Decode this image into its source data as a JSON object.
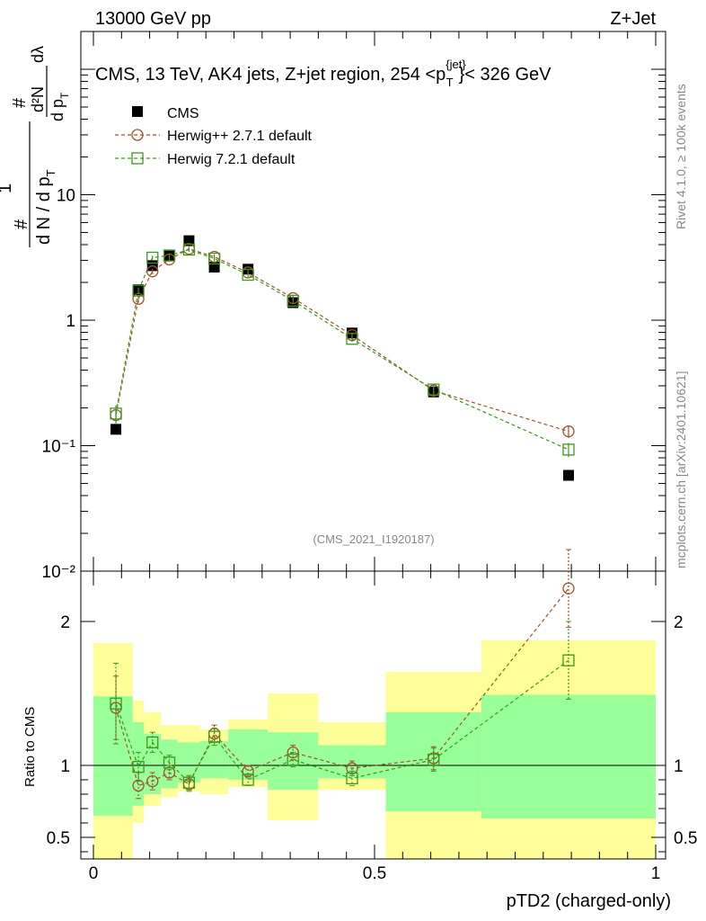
{
  "header": {
    "left": "13000 GeV pp",
    "right": "Z+Jet"
  },
  "side_labels": {
    "rivet": "Rivet 4.1.0, ≥ 100k events",
    "mcplots": "mcplots.cern.ch [arXiv:2401.10621]"
  },
  "watermark": "(CMS_2021_I1920187)",
  "ylabel_main": {
    "num": "1",
    "den": "d N / d p",
    "den_sub": "T",
    "hash_top": "#",
    "hash_bottom": "#",
    "frac2_num": "d²N",
    "frac2_den": "d p",
    "frac2_den_sub": "T",
    "dlambda": "dλ"
  },
  "chart_data": [
    {
      "type": "scatter",
      "panel": "main",
      "title": "CMS, 13 TeV, AK4 jets, Z+jet region, 254 <p",
      "title_sup": "{jet}",
      "title_sub": "T",
      "title_tail": "}< 326 GeV",
      "xlabel": "pTD2 (charged-only)",
      "yscale": "log",
      "xlim": [
        0,
        1
      ],
      "ylim": [
        0.01,
        200
      ],
      "yticks": [
        {
          "value": 0.01,
          "label": "10⁻²"
        },
        {
          "value": 0.1,
          "label": "10⁻¹"
        },
        {
          "value": 1,
          "label": "1"
        },
        {
          "value": 10,
          "label": "10"
        }
      ],
      "x": [
        0.04,
        0.08,
        0.105,
        0.135,
        0.17,
        0.215,
        0.275,
        0.355,
        0.46,
        0.605,
        0.845
      ],
      "series": [
        {
          "name": "CMS",
          "marker": "filled-square",
          "color": "#000000",
          "values": [
            0.135,
            1.75,
            2.72,
            3.25,
            4.3,
            2.65,
            2.55,
            1.38,
            0.79,
            0.268,
            0.058
          ]
        },
        {
          "name": "Herwig++ 2.7.1 default",
          "marker": "open-circle",
          "color": "#a0522d",
          "values": [
            0.175,
            1.48,
            2.45,
            3.05,
            3.7,
            3.2,
            2.4,
            1.5,
            0.76,
            0.275,
            0.13
          ],
          "errors": [
            0.018,
            0.1,
            0.12,
            0.12,
            0.15,
            0.15,
            0.1,
            0.07,
            0.04,
            0.02,
            0.015
          ]
        },
        {
          "name": "Herwig 7.2.1 default",
          "marker": "open-square",
          "color": "#3a9a1a",
          "values": [
            0.18,
            1.72,
            3.15,
            3.28,
            3.65,
            3.1,
            2.3,
            1.43,
            0.71,
            0.28,
            0.093
          ],
          "errors": [
            0.03,
            0.1,
            0.12,
            0.12,
            0.15,
            0.15,
            0.1,
            0.07,
            0.04,
            0.02,
            0.012
          ]
        }
      ],
      "legend_position": "top-left"
    },
    {
      "type": "scatter",
      "panel": "ratio",
      "ylabel": "Ratio to CMS",
      "xlabel": "pTD2 (charged-only)",
      "xlim": [
        0,
        1
      ],
      "ylim": [
        0.35,
        2.35
      ],
      "xticks": [
        {
          "value": 0,
          "label": "0"
        },
        {
          "value": 0.5,
          "label": "0.5"
        },
        {
          "value": 1,
          "label": "1"
        }
      ],
      "yticks": [
        {
          "value": 0.5,
          "label": "0.5"
        },
        {
          "value": 1,
          "label": "1"
        },
        {
          "value": 2,
          "label": "2"
        }
      ],
      "bin_edges": [
        0,
        0.07,
        0.09,
        0.12,
        0.15,
        0.19,
        0.24,
        0.31,
        0.4,
        0.52,
        0.69,
        1.0
      ],
      "band_1sigma": [
        [
          0.65,
          1.48
        ],
        [
          0.72,
          1.3
        ],
        [
          0.8,
          1.22
        ],
        [
          0.84,
          1.18
        ],
        [
          0.88,
          1.16
        ],
        [
          0.91,
          1.17
        ],
        [
          0.9,
          1.25
        ],
        [
          0.83,
          1.23
        ],
        [
          0.91,
          1.14
        ],
        [
          0.68,
          1.37
        ],
        [
          0.63,
          1.49
        ]
      ],
      "band_2sigma": [
        [
          0.35,
          1.85
        ],
        [
          0.6,
          1.45
        ],
        [
          0.72,
          1.37
        ],
        [
          0.78,
          1.28
        ],
        [
          0.82,
          1.28
        ],
        [
          0.8,
          1.25
        ],
        [
          0.85,
          1.32
        ],
        [
          0.62,
          1.5
        ],
        [
          0.83,
          1.3
        ],
        [
          0.35,
          1.65
        ],
        [
          0.35,
          1.87
        ]
      ],
      "x": [
        0.04,
        0.08,
        0.105,
        0.135,
        0.17,
        0.215,
        0.275,
        0.355,
        0.46,
        0.605,
        0.845
      ],
      "series": [
        {
          "name": "Herwig++ 2.7.1 default",
          "marker": "open-circle",
          "color": "#a0522d",
          "values": [
            1.4,
            0.86,
            0.89,
            0.95,
            0.87,
            1.22,
            0.96,
            1.09,
            0.98,
            1.05,
            2.23
          ],
          "errors": [
            0.22,
            0.09,
            0.06,
            0.05,
            0.05,
            0.06,
            0.04,
            0.05,
            0.05,
            0.08,
            0.27
          ]
        },
        {
          "name": "Herwig 7.2.1 default",
          "marker": "open-square",
          "color": "#3a9a1a",
          "values": [
            1.43,
            0.99,
            1.16,
            1.02,
            0.88,
            1.2,
            0.9,
            1.04,
            0.91,
            1.04,
            1.73
          ],
          "errors": [
            0.28,
            0.1,
            0.07,
            0.05,
            0.05,
            0.06,
            0.04,
            0.05,
            0.05,
            0.08,
            0.27
          ]
        }
      ],
      "reference_line": 1
    }
  ]
}
